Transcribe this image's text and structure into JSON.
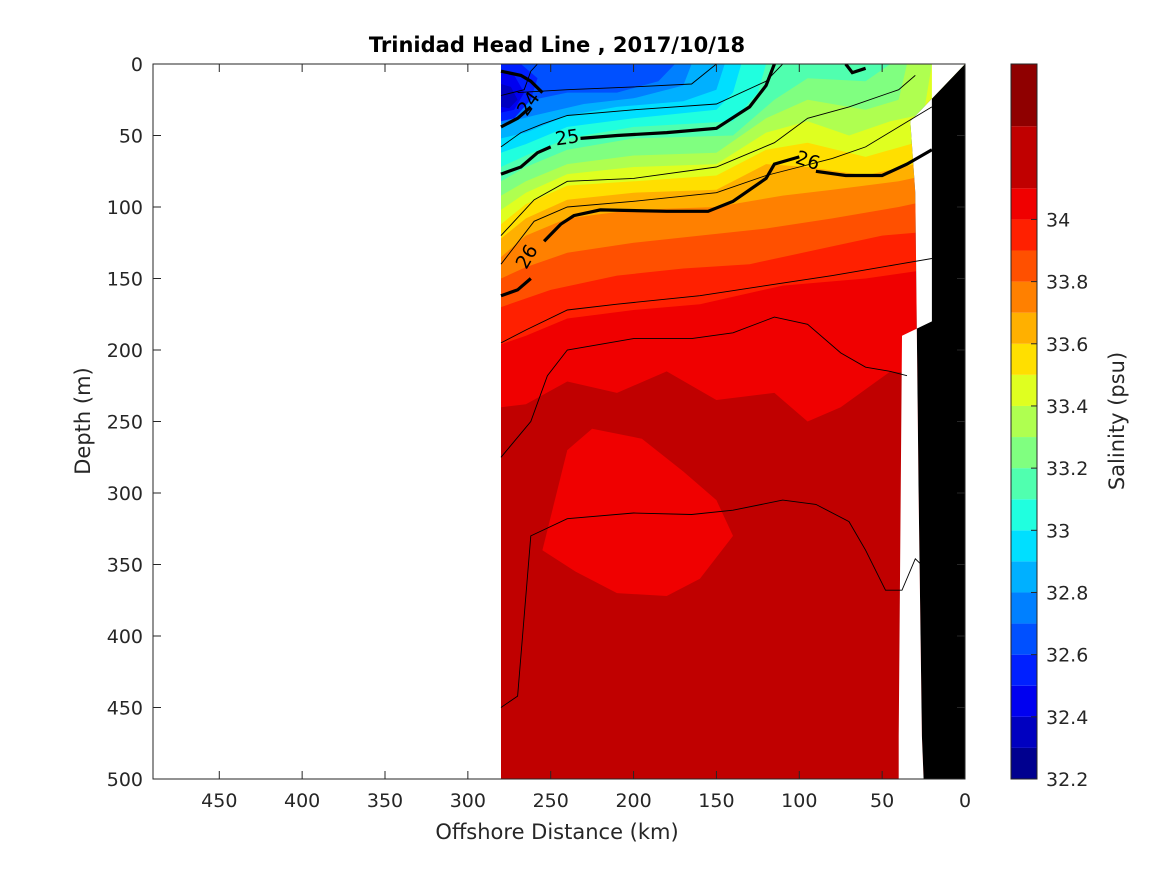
{
  "chart_data": {
    "type": "heatmap",
    "title": "Trinidad Head Line , 2017/10/18",
    "xlabel": "Offshore Distance (km)",
    "ylabel": "Depth (m)",
    "colorbar_label": "Salinity (psu)",
    "x_direction": "reversed",
    "y_direction": "reversed",
    "xlim": [
      490,
      0
    ],
    "ylim": [
      0,
      500
    ],
    "x_ticks": [
      450,
      400,
      350,
      300,
      250,
      200,
      150,
      100,
      50,
      0
    ],
    "y_ticks": [
      0,
      50,
      100,
      150,
      200,
      250,
      300,
      350,
      400,
      450,
      500
    ],
    "colorbar_range": [
      32.2,
      34.5
    ],
    "colorbar_ticks": [
      32.2,
      32.4,
      32.6,
      32.8,
      33.0,
      33.2,
      33.4,
      33.6,
      33.8,
      34.0
    ],
    "colorbar_tick_labels": [
      "32.2",
      "32.4",
      "32.6",
      "32.8",
      "33",
      "33.2",
      "33.4",
      "33.6",
      "33.8",
      "34"
    ],
    "colorbar_levels": [
      {
        "from": 32.2,
        "to": 32.3,
        "color": "#00008f"
      },
      {
        "from": 32.3,
        "to": 32.4,
        "color": "#0000c0"
      },
      {
        "from": 32.4,
        "to": 32.5,
        "color": "#0000f0"
      },
      {
        "from": 32.5,
        "to": 32.6,
        "color": "#0020ff"
      },
      {
        "from": 32.6,
        "to": 32.7,
        "color": "#0050ff"
      },
      {
        "from": 32.7,
        "to": 32.8,
        "color": "#0080ff"
      },
      {
        "from": 32.8,
        "to": 32.9,
        "color": "#00b0ff"
      },
      {
        "from": 32.9,
        "to": 33.0,
        "color": "#00dfff"
      },
      {
        "from": 33.0,
        "to": 33.1,
        "color": "#20ffdf"
      },
      {
        "from": 33.1,
        "to": 33.2,
        "color": "#50ffaf"
      },
      {
        "from": 33.2,
        "to": 33.3,
        "color": "#80ff80"
      },
      {
        "from": 33.3,
        "to": 33.4,
        "color": "#afff50"
      },
      {
        "from": 33.4,
        "to": 33.5,
        "color": "#dfff20"
      },
      {
        "from": 33.5,
        "to": 33.6,
        "color": "#ffdf00"
      },
      {
        "from": 33.6,
        "to": 33.7,
        "color": "#ffb000"
      },
      {
        "from": 33.7,
        "to": 33.8,
        "color": "#ff8000"
      },
      {
        "from": 33.8,
        "to": 33.9,
        "color": "#ff5000"
      },
      {
        "from": 33.9,
        "to": 34.0,
        "color": "#ff2000"
      },
      {
        "from": 34.0,
        "to": 34.1,
        "color": "#f00000"
      },
      {
        "from": 34.1,
        "to": 34.3,
        "color": "#c00000"
      },
      {
        "from": 34.3,
        "to": 34.5,
        "color": "#8f0000"
      }
    ],
    "data_extent_x_km": [
      280,
      0
    ],
    "contour_labels": [
      {
        "text": "24",
        "x": 263,
        "y": 28
      },
      {
        "text": "25",
        "x": 240,
        "y": 52
      },
      {
        "text": "26",
        "x": 95,
        "y": 68
      },
      {
        "text": "26",
        "x": 264,
        "y": 135
      }
    ],
    "colors": {
      "bottom_mask": "#000000",
      "contour_line": "#000000"
    }
  }
}
